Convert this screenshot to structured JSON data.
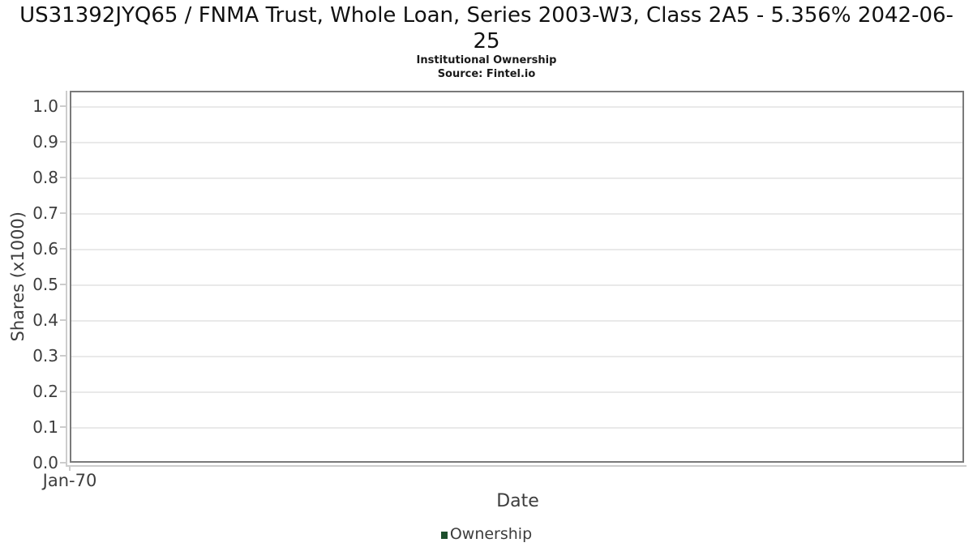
{
  "chart_data": {
    "type": "line",
    "title": "US31392JYQ65 / FNMA Trust, Whole Loan, Series 2003-W3, Class 2A5 - 5.356% 2042-06-25",
    "subtitle": "Institutional Ownership",
    "source": "Source: Fintel.io",
    "xlabel": "Date",
    "ylabel": "Shares (x1000)",
    "ylim": [
      0,
      1.0432
    ],
    "ytick_values": [
      0.0,
      0.1,
      0.2,
      0.3,
      0.4,
      0.5,
      0.6,
      0.7,
      0.8,
      0.9,
      1.0
    ],
    "ytick_decimals": 1,
    "xticks": [
      {
        "label": "Jan-70",
        "fraction": 0
      }
    ],
    "grid": "horizontal-only",
    "gridline_color": "#e9e9e9",
    "axis_line_color": "#cccccc",
    "plot_border_color": "#7a7a7a",
    "legend_position": "bottom-center",
    "series": [
      {
        "name": "Ownership",
        "color": "#1d4f2c",
        "points": []
      }
    ]
  }
}
